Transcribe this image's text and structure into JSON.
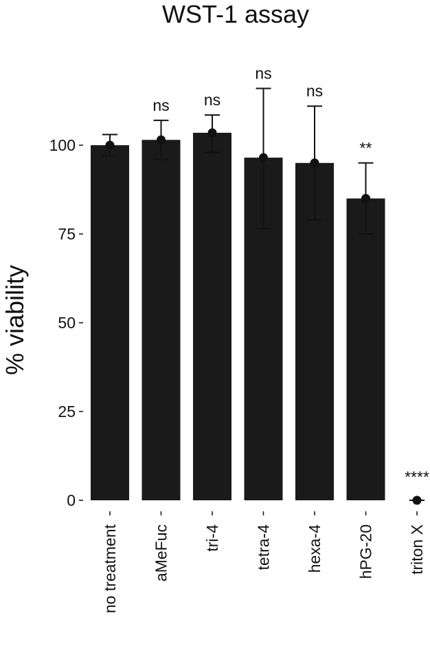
{
  "chart_data": {
    "type": "bar",
    "title": "WST-1 assay",
    "xlabel": "",
    "ylabel": "% viability",
    "ylim": [
      0,
      120
    ],
    "yticks": [
      0,
      25,
      50,
      75,
      100
    ],
    "grid": false,
    "legend": "none",
    "categories": [
      "no treatment",
      "aMeFuc",
      "tri-4",
      "tetra-4",
      "hexa-4",
      "hPG-20",
      "triton X"
    ],
    "values": [
      100,
      101.5,
      103.5,
      96.5,
      95,
      85,
      0
    ],
    "error_low": [
      97,
      96,
      98,
      76.5,
      79,
      75,
      0
    ],
    "error_high": [
      103,
      107,
      108.5,
      116,
      111,
      95,
      0
    ],
    "annotations": [
      "",
      "ns",
      "ns",
      "ns",
      "ns",
      "**",
      "****"
    ],
    "colors": {
      "bar": "#1a1a1a",
      "point": "#111111",
      "text": "#111111"
    }
  }
}
